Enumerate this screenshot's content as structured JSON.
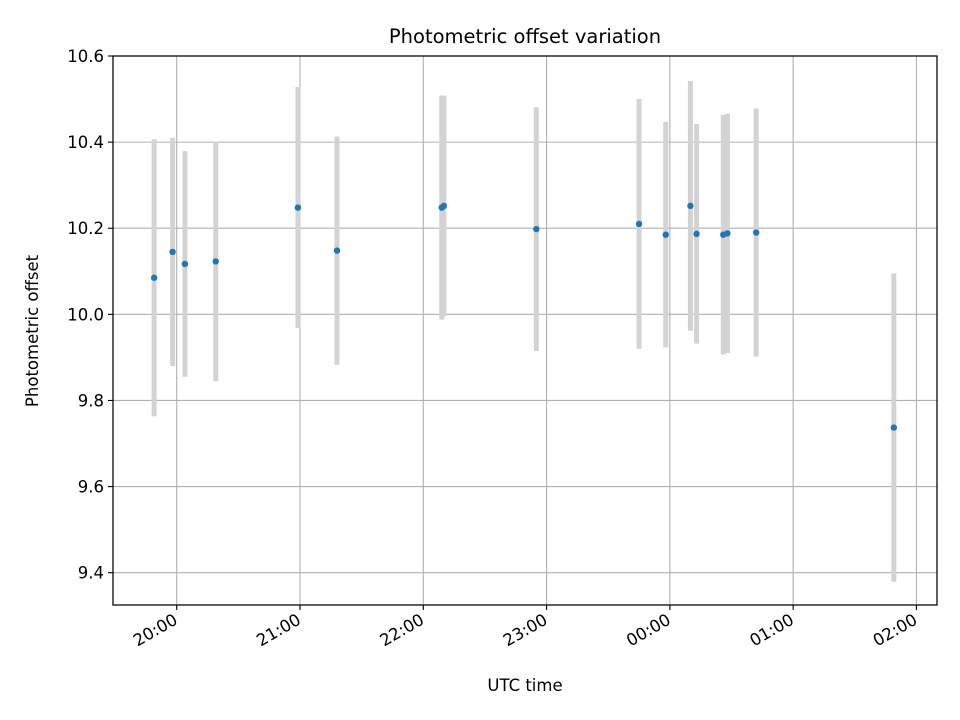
{
  "chart_data": {
    "type": "scatter",
    "title": "Photometric offset variation",
    "xlabel": "UTC time",
    "ylabel": "Photometric offset",
    "xlim": [
      "19:29",
      "02:10"
    ],
    "ylim": [
      9.325,
      10.6
    ],
    "grid": true,
    "x_ticks": [
      "20:00",
      "21:00",
      "22:00",
      "23:00",
      "00:00",
      "01:00",
      "02:00"
    ],
    "y_ticks": [
      "9.4",
      "9.6",
      "9.8",
      "10.0",
      "10.2",
      "10.4",
      "10.6"
    ],
    "colors": {
      "point": "#1f77b4",
      "errorbar": "#d3d3d3",
      "grid": "#b0b0b0"
    },
    "series": [
      {
        "points": [
          {
            "x": "19:49",
            "y": 10.085,
            "err": 0.322
          },
          {
            "x": "19:58",
            "y": 10.145,
            "err": 0.265
          },
          {
            "x": "20:04",
            "y": 10.117,
            "err": 0.262
          },
          {
            "x": "20:19",
            "y": 10.123,
            "err": 0.278
          },
          {
            "x": "20:59",
            "y": 10.248,
            "err": 0.28
          },
          {
            "x": "21:18",
            "y": 10.148,
            "err": 0.265
          },
          {
            "x": "22:09",
            "y": 10.248,
            "err": 0.26
          },
          {
            "x": "22:10",
            "y": 10.252,
            "err": 0.256
          },
          {
            "x": "22:55",
            "y": 10.198,
            "err": 0.283
          },
          {
            "x": "23:45",
            "y": 10.21,
            "err": 0.29
          },
          {
            "x": "23:58",
            "y": 10.185,
            "err": 0.262
          },
          {
            "x": "00:10",
            "y": 10.252,
            "err": 0.29
          },
          {
            "x": "00:13",
            "y": 10.187,
            "err": 0.255
          },
          {
            "x": "00:26",
            "y": 10.185,
            "err": 0.278
          },
          {
            "x": "00:28",
            "y": 10.188,
            "err": 0.278
          },
          {
            "x": "00:42",
            "y": 10.19,
            "err": 0.288
          },
          {
            "x": "01:49",
            "y": 9.737,
            "err": 0.358
          }
        ]
      }
    ]
  }
}
